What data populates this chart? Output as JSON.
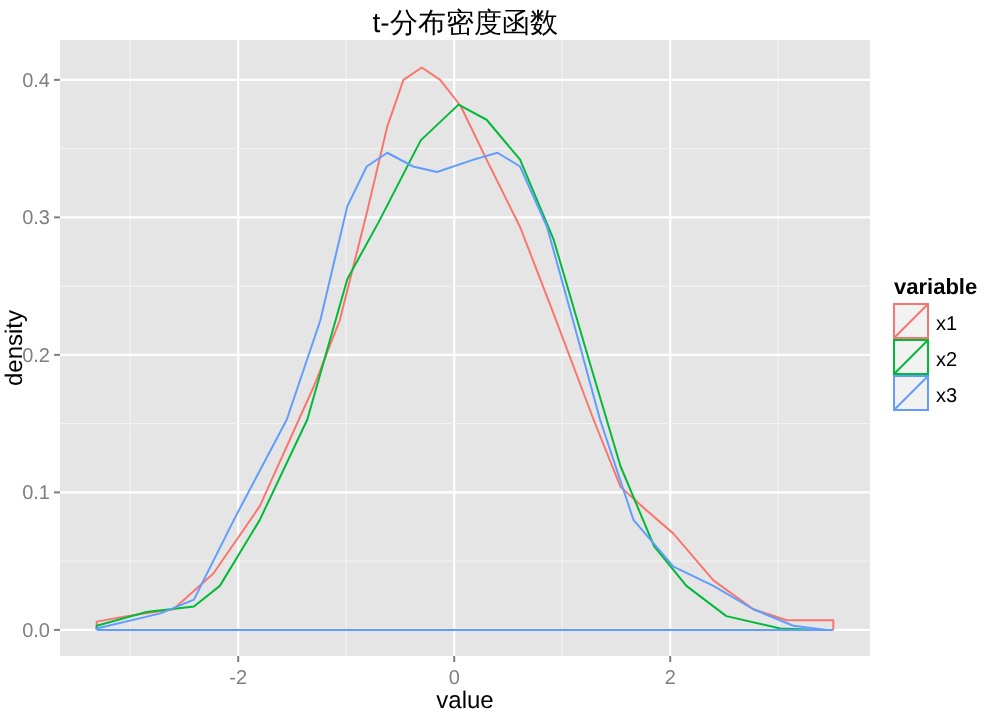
{
  "chart_data": {
    "type": "line",
    "title": "t-分布密度函数",
    "xlabel": "value",
    "ylabel": "density",
    "legend_title": "variable",
    "xlim": [
      -3.65,
      3.85
    ],
    "ylim": [
      -0.019,
      0.429
    ],
    "xticks": [
      -2,
      0,
      2
    ],
    "yticks": [
      {
        "value": 0,
        "label": "0.0"
      },
      0.1,
      0.2,
      0.3,
      0.4
    ],
    "grid": true,
    "legend": "right",
    "ref_lines": [
      {
        "axis": "y",
        "value": 0,
        "color": "#619cff"
      }
    ],
    "series": [
      {
        "name": "x1",
        "color": "#f8766d",
        "x": [
          -3.31,
          -3.31,
          -3.03,
          -2.6,
          -2.23,
          -1.8,
          -1.3,
          -1.06,
          -0.81,
          -0.62,
          -0.47,
          -0.3,
          -0.13,
          0.06,
          0.3,
          0.61,
          0.92,
          1.29,
          1.54,
          1.78,
          2.03,
          2.4,
          2.77,
          3.08,
          3.51,
          3.51
        ],
        "values": [
          0,
          0.006,
          0.01,
          0.015,
          0.041,
          0.09,
          0.177,
          0.225,
          0.303,
          0.366,
          0.4,
          0.409,
          0.4,
          0.381,
          0.342,
          0.293,
          0.23,
          0.153,
          0.104,
          0.087,
          0.07,
          0.036,
          0.015,
          0.007,
          0.007,
          0
        ]
      },
      {
        "name": "x2",
        "color": "#00ba38",
        "x": [
          -3.31,
          -3.31,
          -2.85,
          -2.41,
          -2.17,
          -1.8,
          -1.36,
          -0.99,
          -0.69,
          -0.31,
          0.04,
          0.3,
          0.61,
          0.92,
          1.23,
          1.54,
          1.85,
          2.15,
          2.52,
          3.02,
          3.39
        ],
        "values": [
          0,
          0.003,
          0.013,
          0.017,
          0.032,
          0.08,
          0.153,
          0.255,
          0.298,
          0.356,
          0.382,
          0.371,
          0.342,
          0.284,
          0.201,
          0.119,
          0.061,
          0.032,
          0.01,
          0.001,
          0
        ]
      },
      {
        "name": "x3",
        "color": "#619cff",
        "x": [
          -3.31,
          -3.31,
          -2.72,
          -2.41,
          -2.04,
          -1.55,
          -1.24,
          -0.99,
          -0.81,
          -0.62,
          -0.38,
          -0.16,
          0.18,
          0.4,
          0.61,
          0.86,
          1.1,
          1.35,
          1.66,
          2.03,
          2.4,
          2.77,
          3.14,
          3.45
        ],
        "values": [
          0,
          0.001,
          0.012,
          0.022,
          0.08,
          0.153,
          0.225,
          0.308,
          0.337,
          0.347,
          0.337,
          0.333,
          0.342,
          0.347,
          0.337,
          0.293,
          0.225,
          0.153,
          0.08,
          0.046,
          0.032,
          0.015,
          0.003,
          0
        ]
      }
    ]
  }
}
